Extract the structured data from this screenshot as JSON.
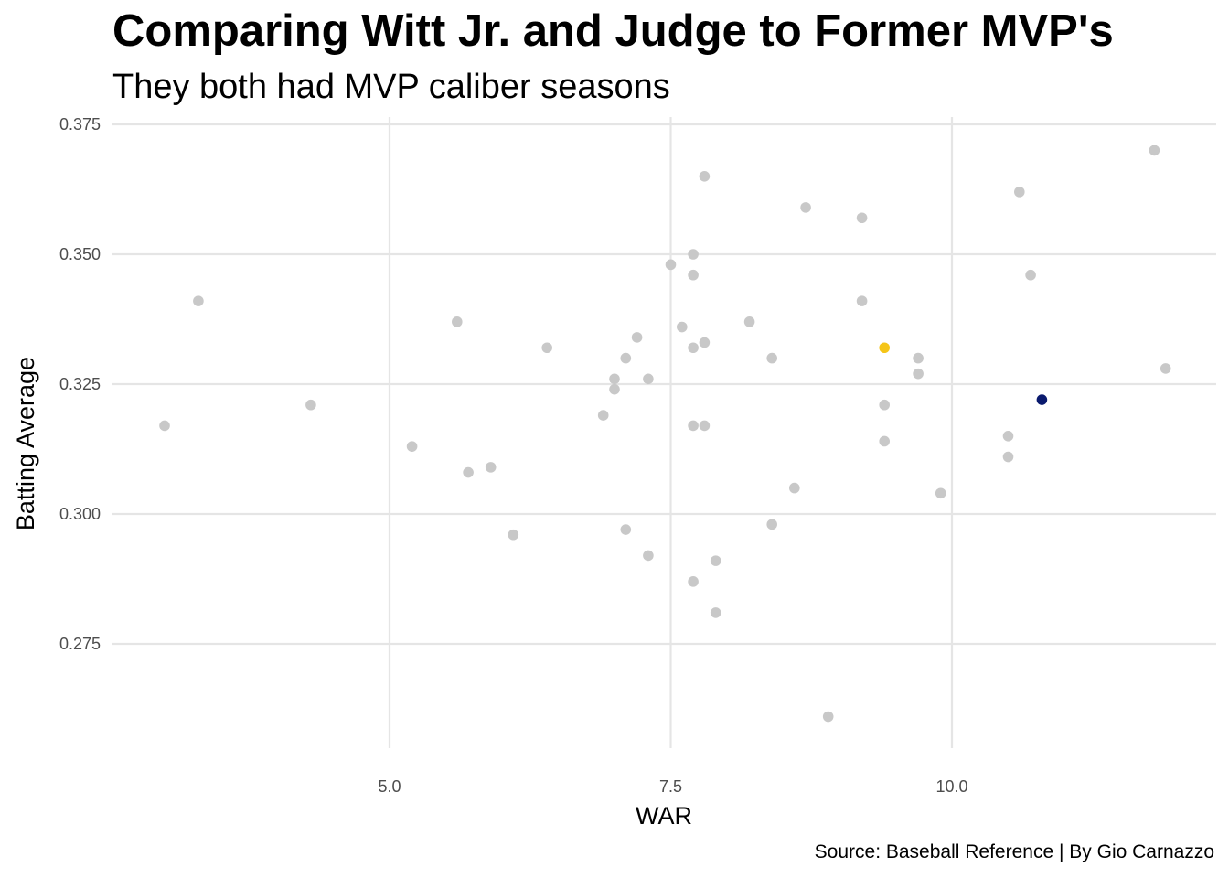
{
  "chart_data": {
    "type": "scatter",
    "title": "Comparing Witt Jr. and Judge to Former MVP's",
    "subtitle": "They both had MVP caliber seasons",
    "caption": "Source: Baseball Reference | By Gio Carnazzo",
    "xlabel": "WAR",
    "ylabel": "Batting Average",
    "xlim": [
      2.7,
      12.3
    ],
    "ylim": [
      0.258,
      0.376
    ],
    "x_ticks": [
      5.0,
      7.5,
      10.0
    ],
    "x_tick_labels": [
      "5.0",
      "7.5",
      "10.0"
    ],
    "y_ticks": [
      0.275,
      0.3,
      0.325,
      0.35,
      0.375
    ],
    "y_tick_labels": [
      "0.275",
      "0.300",
      "0.325",
      "0.350",
      "0.375"
    ],
    "grid": true,
    "colors": {
      "default": "#c8c8c8",
      "highlight_gold": "#f5c518",
      "highlight_navy": "#0a1a6e"
    },
    "points": [
      {
        "x": 3.0,
        "y": 0.317
      },
      {
        "x": 3.3,
        "y": 0.341
      },
      {
        "x": 4.3,
        "y": 0.321
      },
      {
        "x": 5.2,
        "y": 0.313
      },
      {
        "x": 5.6,
        "y": 0.337
      },
      {
        "x": 5.7,
        "y": 0.308
      },
      {
        "x": 5.9,
        "y": 0.309
      },
      {
        "x": 6.1,
        "y": 0.296
      },
      {
        "x": 6.4,
        "y": 0.332
      },
      {
        "x": 6.9,
        "y": 0.319
      },
      {
        "x": 7.0,
        "y": 0.326
      },
      {
        "x": 7.0,
        "y": 0.324
      },
      {
        "x": 7.1,
        "y": 0.33
      },
      {
        "x": 7.1,
        "y": 0.297
      },
      {
        "x": 7.2,
        "y": 0.334
      },
      {
        "x": 7.3,
        "y": 0.326
      },
      {
        "x": 7.3,
        "y": 0.292
      },
      {
        "x": 7.5,
        "y": 0.348
      },
      {
        "x": 7.6,
        "y": 0.336
      },
      {
        "x": 7.7,
        "y": 0.35
      },
      {
        "x": 7.7,
        "y": 0.346
      },
      {
        "x": 7.7,
        "y": 0.332
      },
      {
        "x": 7.7,
        "y": 0.317
      },
      {
        "x": 7.7,
        "y": 0.287
      },
      {
        "x": 7.8,
        "y": 0.365
      },
      {
        "x": 7.8,
        "y": 0.333
      },
      {
        "x": 7.8,
        "y": 0.317
      },
      {
        "x": 7.9,
        "y": 0.291
      },
      {
        "x": 7.9,
        "y": 0.281
      },
      {
        "x": 8.2,
        "y": 0.337
      },
      {
        "x": 8.4,
        "y": 0.33
      },
      {
        "x": 8.4,
        "y": 0.298
      },
      {
        "x": 8.6,
        "y": 0.305
      },
      {
        "x": 8.7,
        "y": 0.359
      },
      {
        "x": 8.9,
        "y": 0.261
      },
      {
        "x": 9.2,
        "y": 0.357
      },
      {
        "x": 9.2,
        "y": 0.341
      },
      {
        "x": 9.4,
        "y": 0.332,
        "highlight": "gold"
      },
      {
        "x": 9.4,
        "y": 0.321
      },
      {
        "x": 9.4,
        "y": 0.314
      },
      {
        "x": 9.7,
        "y": 0.33
      },
      {
        "x": 9.7,
        "y": 0.327
      },
      {
        "x": 9.9,
        "y": 0.304
      },
      {
        "x": 10.5,
        "y": 0.315
      },
      {
        "x": 10.5,
        "y": 0.311
      },
      {
        "x": 10.6,
        "y": 0.362
      },
      {
        "x": 10.7,
        "y": 0.346
      },
      {
        "x": 10.8,
        "y": 0.322,
        "highlight": "navy"
      },
      {
        "x": 11.8,
        "y": 0.37
      },
      {
        "x": 11.9,
        "y": 0.328
      }
    ]
  }
}
